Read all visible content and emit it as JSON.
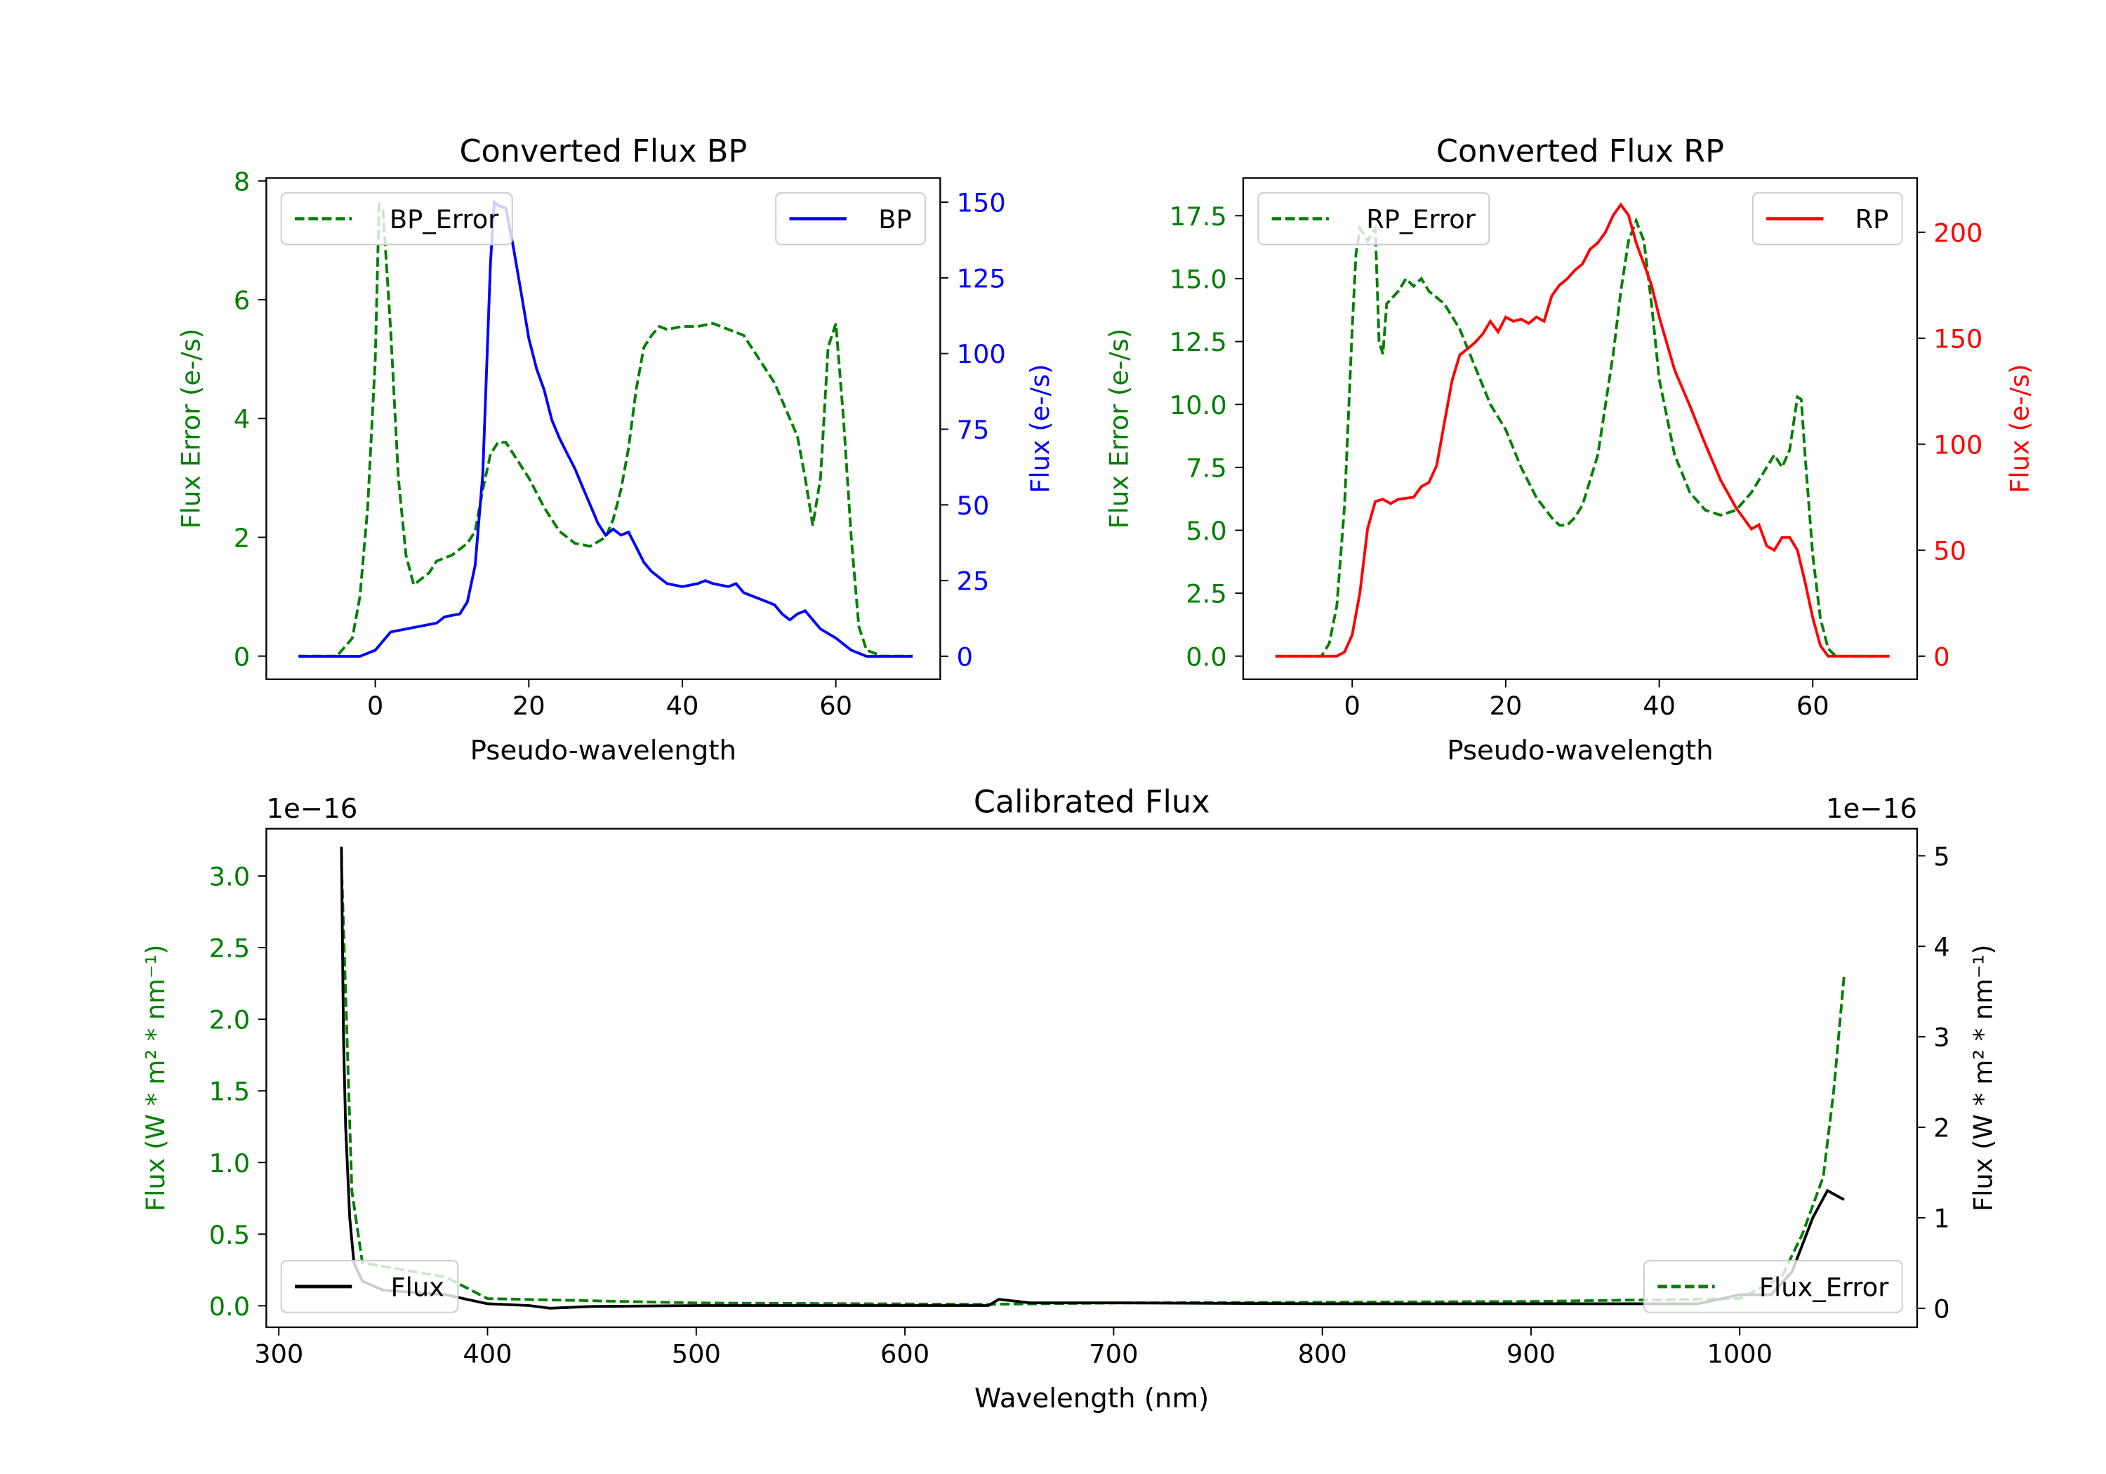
{
  "chart_data": [
    {
      "type": "line",
      "title": "Converted Flux BP",
      "xlabel": "Pseudo-wavelength",
      "ylabel": "Flux Error (e-/s)",
      "ylabel_right": "Flux (e-/s)",
      "xlim": [
        -14.2,
        73.6
      ],
      "ylim": [
        -0.39,
        8.05
      ],
      "ylim_right": [
        -7.6,
        158
      ],
      "xticks": [
        0,
        20,
        40,
        60
      ],
      "yticks": [
        0,
        2,
        4,
        6,
        8
      ],
      "yticks_right": [
        0,
        25,
        50,
        75,
        100,
        125,
        150
      ],
      "left_color": "#008000",
      "right_color": "#0000ff",
      "series": [
        {
          "name": "BP_Error",
          "axis": "left",
          "color": "#008000",
          "dash": true,
          "legend": "top-left",
          "x": [
            -10,
            -5,
            -3,
            -2,
            -1,
            0,
            0.5,
            1,
            2,
            3,
            4,
            5,
            6,
            7,
            8,
            10,
            12,
            13,
            14,
            15,
            16,
            17,
            18,
            20,
            22,
            24,
            26,
            28,
            30,
            31,
            32,
            33,
            34,
            35,
            36,
            37,
            38,
            40,
            42,
            44,
            46,
            48,
            50,
            52,
            54,
            55,
            56,
            57,
            58,
            59,
            60,
            61,
            62,
            63,
            64,
            66,
            70
          ],
          "y": [
            0,
            0,
            0.3,
            1,
            2.5,
            5,
            7.6,
            7.5,
            5.5,
            3,
            1.7,
            1.2,
            1.3,
            1.4,
            1.6,
            1.7,
            1.9,
            2.1,
            2.8,
            3.4,
            3.6,
            3.6,
            3.4,
            3.0,
            2.5,
            2.1,
            1.9,
            1.85,
            2.0,
            2.3,
            2.8,
            3.5,
            4.5,
            5.2,
            5.4,
            5.55,
            5.5,
            5.55,
            5.55,
            5.6,
            5.5,
            5.4,
            5.0,
            4.6,
            4.0,
            3.7,
            3.0,
            2.2,
            3.0,
            5.2,
            5.6,
            4.0,
            2.0,
            0.5,
            0.1,
            0,
            0
          ]
        },
        {
          "name": "BP",
          "axis": "right",
          "color": "#0000ff",
          "dash": false,
          "legend": "top-right",
          "x": [
            -10,
            -2,
            0,
            1,
            2,
            4,
            6,
            8,
            9,
            11,
            12,
            13,
            14,
            15,
            15.5,
            16,
            17,
            18,
            19,
            20,
            21,
            22,
            23,
            24,
            25,
            26,
            27,
            28,
            29,
            30,
            31,
            32,
            33,
            34,
            35,
            36,
            38,
            40,
            42,
            43,
            44,
            46,
            47,
            48,
            50,
            52,
            53,
            54,
            55,
            56,
            57,
            58,
            60,
            62,
            64,
            70
          ],
          "y": [
            0,
            0,
            2,
            5,
            8,
            9,
            10,
            11,
            13,
            14,
            18,
            30,
            60,
            130,
            150,
            149,
            148,
            135,
            120,
            105,
            95,
            88,
            78,
            72,
            67,
            62,
            56,
            50,
            44,
            40,
            42,
            40,
            41,
            36,
            31,
            28,
            24,
            23,
            24,
            25,
            24,
            23,
            24,
            21,
            19,
            17,
            14,
            12,
            14,
            15,
            12,
            9,
            6,
            2,
            0,
            0
          ]
        }
      ]
    },
    {
      "type": "line",
      "title": "Converted Flux RP",
      "xlabel": "Pseudo-wavelength",
      "ylabel": "Flux Error (e-/s)",
      "ylabel_right": "Flux (e-/s)",
      "xlim": [
        -14.2,
        73.6
      ],
      "ylim": [
        -0.92,
        19.0
      ],
      "ylim_right": [
        -10.9,
        225.6
      ],
      "xticks": [
        0,
        20,
        40,
        60
      ],
      "yticks": [
        "0.0",
        "2.5",
        "5.0",
        "7.5",
        "10.0",
        "12.5",
        "15.0",
        "17.5"
      ],
      "yticks_right": [
        0,
        50,
        100,
        150,
        200
      ],
      "left_color": "#008000",
      "right_color": "#ff0000",
      "series": [
        {
          "name": "RP_Error",
          "axis": "left",
          "color": "#008000",
          "dash": true,
          "legend": "top-left",
          "x": [
            -10,
            -4,
            -3,
            -2,
            -1,
            0,
            0.5,
            1,
            2,
            3,
            3.5,
            4,
            4.5,
            6,
            7,
            8,
            9,
            10,
            12,
            14,
            16,
            18,
            20,
            22,
            24,
            26,
            27,
            28,
            29,
            30,
            32,
            34,
            35,
            36,
            37,
            38,
            39,
            40,
            42,
            44,
            46,
            48,
            50,
            52,
            54,
            55,
            56,
            57,
            58,
            58.5,
            59,
            60,
            61,
            62,
            63,
            70
          ],
          "y": [
            0,
            0,
            0.5,
            2,
            6,
            13,
            16,
            17,
            16.5,
            17,
            12.5,
            12,
            14,
            14.5,
            15,
            14.7,
            15,
            14.5,
            14,
            13,
            11.5,
            10,
            9,
            7.5,
            6.3,
            5.5,
            5.2,
            5.2,
            5.5,
            6,
            8,
            12,
            14.5,
            16.5,
            17.3,
            16.5,
            14,
            11,
            8,
            6.5,
            5.8,
            5.6,
            5.8,
            6.5,
            7.5,
            8.0,
            7.5,
            8.2,
            10.3,
            10.2,
            8,
            4,
            1.5,
            0.3,
            0,
            0
          ]
        },
        {
          "name": "RP",
          "axis": "right",
          "color": "#ff0000",
          "dash": false,
          "legend": "top-right",
          "x": [
            -10,
            -2,
            -1,
            0,
            1,
            2,
            3,
            4,
            5,
            6,
            8,
            9,
            10,
            11,
            12,
            13,
            14,
            15,
            16,
            17,
            18,
            19,
            20,
            21,
            22,
            23,
            24,
            25,
            26,
            27,
            28,
            29,
            30,
            31,
            32,
            33,
            34,
            35,
            36,
            37,
            38,
            39,
            40,
            42,
            44,
            46,
            48,
            50,
            52,
            53,
            54,
            55,
            56,
            57,
            58,
            59,
            60,
            61,
            62,
            70
          ],
          "y": [
            0,
            0,
            2,
            10,
            30,
            60,
            73,
            74,
            72,
            74,
            75,
            80,
            82,
            90,
            110,
            130,
            142,
            145,
            148,
            152,
            158,
            153,
            160,
            158,
            159,
            157,
            160,
            158,
            170,
            175,
            178,
            182,
            185,
            192,
            195,
            200,
            208,
            213,
            208,
            195,
            185,
            175,
            160,
            135,
            118,
            100,
            83,
            70,
            60,
            62,
            52,
            50,
            56,
            56,
            50,
            35,
            18,
            5,
            0,
            0
          ]
        }
      ]
    },
    {
      "type": "line",
      "title": "Calibrated Flux",
      "xlabel": "Wavelength (nm)",
      "ylabel": "Flux (W * m² * nm⁻¹)",
      "ylabel_right": "Flux (W * m² * nm⁻¹)",
      "offset_left": "1e−16",
      "offset_right": "1e−16",
      "xlim": [
        294,
        1085
      ],
      "ylim": [
        -0.15,
        3.33
      ],
      "ylim_right": [
        -0.21,
        5.3
      ],
      "xticks": [
        300,
        400,
        500,
        600,
        700,
        800,
        900,
        1000
      ],
      "yticks": [
        "0.0",
        "0.5",
        "1.0",
        "1.5",
        "2.0",
        "2.5",
        "3.0"
      ],
      "yticks_right": [
        0,
        1,
        2,
        3,
        4,
        5
      ],
      "left_color": "#008000",
      "right_color": "#000000",
      "series": [
        {
          "name": "Flux_Error",
          "axis": "left",
          "color": "#008000",
          "dash": true,
          "legend": "bottom-right",
          "x": [
            330,
            335,
            340,
            380,
            400,
            500,
            640,
            700,
            900,
            1000,
            1020,
            1030,
            1040,
            1045,
            1050
          ],
          "y": [
            3.1,
            0.8,
            0.3,
            0.2,
            0.05,
            0.02,
            0.01,
            0.02,
            0.03,
            0.05,
            0.2,
            0.5,
            0.9,
            1.5,
            2.3
          ]
        },
        {
          "name": "Flux",
          "axis": "right",
          "color": "#000000",
          "dash": false,
          "legend": "bottom-left",
          "x": [
            330,
            331,
            332,
            334,
            336,
            340,
            350,
            380,
            390,
            400,
            420,
            430,
            450,
            500,
            600,
            640,
            645,
            660,
            700,
            800,
            900,
            950,
            980,
            1000,
            1015,
            1025,
            1035,
            1042,
            1050
          ],
          "y": [
            5.1,
            3,
            2,
            1.0,
            0.5,
            0.3,
            0.2,
            0.15,
            0.1,
            0.05,
            0.03,
            0.0,
            0.02,
            0.03,
            0.03,
            0.03,
            0.1,
            0.06,
            0.06,
            0.05,
            0.05,
            0.05,
            0.05,
            0.15,
            0.15,
            0.4,
            1.0,
            1.3,
            1.2
          ]
        }
      ]
    }
  ]
}
